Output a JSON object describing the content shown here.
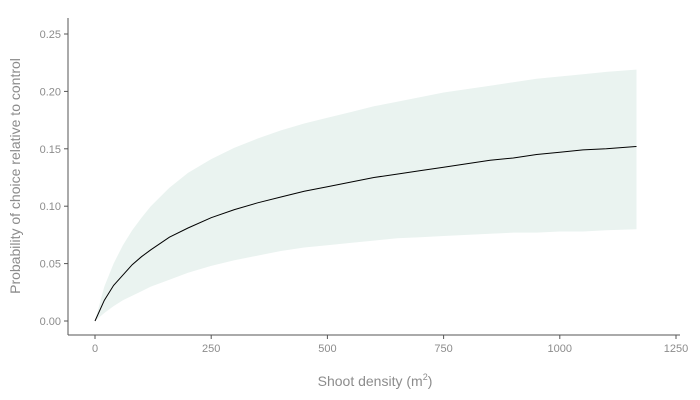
{
  "chart_data": {
    "type": "line",
    "title": "",
    "xlabel_base": "Shoot density (m",
    "xlabel_sup": "2",
    "xlabel_close": ")",
    "ylabel": "Probability of choice relative to control",
    "xlim": [
      0,
      1250
    ],
    "ylim": [
      0,
      0.25
    ],
    "x_ticks": [
      0,
      250,
      500,
      750,
      1000,
      1250
    ],
    "x_tick_labels": [
      "0",
      "250",
      "500",
      "750",
      "1000",
      "1250"
    ],
    "y_ticks": [
      0,
      0.05,
      0.1,
      0.15,
      0.2,
      0.25
    ],
    "y_tick_labels": [
      "0.00",
      "0.05",
      "0.10",
      "0.15",
      "0.20",
      "0.25"
    ],
    "grid": false,
    "series": [
      {
        "x": [
          0,
          20,
          40,
          60,
          80,
          100,
          120,
          160,
          200,
          250,
          300,
          350,
          400,
          450,
          500,
          550,
          600,
          650,
          700,
          750,
          800,
          850,
          900,
          950,
          1000,
          1050,
          1100,
          1165
        ],
        "y": [
          0.0,
          0.018,
          0.031,
          0.04,
          0.049,
          0.056,
          0.062,
          0.073,
          0.081,
          0.09,
          0.097,
          0.103,
          0.108,
          0.113,
          0.117,
          0.121,
          0.125,
          0.128,
          0.131,
          0.134,
          0.137,
          0.14,
          0.142,
          0.145,
          0.147,
          0.149,
          0.15,
          0.152
        ],
        "lower": [
          0.0,
          0.007,
          0.013,
          0.018,
          0.022,
          0.026,
          0.03,
          0.036,
          0.042,
          0.048,
          0.053,
          0.057,
          0.061,
          0.064,
          0.066,
          0.068,
          0.07,
          0.072,
          0.073,
          0.074,
          0.075,
          0.076,
          0.077,
          0.077,
          0.078,
          0.078,
          0.079,
          0.08
        ],
        "upper": [
          0.0,
          0.03,
          0.05,
          0.066,
          0.079,
          0.09,
          0.1,
          0.116,
          0.129,
          0.141,
          0.151,
          0.159,
          0.166,
          0.172,
          0.177,
          0.182,
          0.187,
          0.191,
          0.195,
          0.199,
          0.202,
          0.205,
          0.208,
          0.211,
          0.213,
          0.215,
          0.217,
          0.219
        ]
      }
    ],
    "line_color": "#000000",
    "band_color": "#eaf3f0"
  }
}
